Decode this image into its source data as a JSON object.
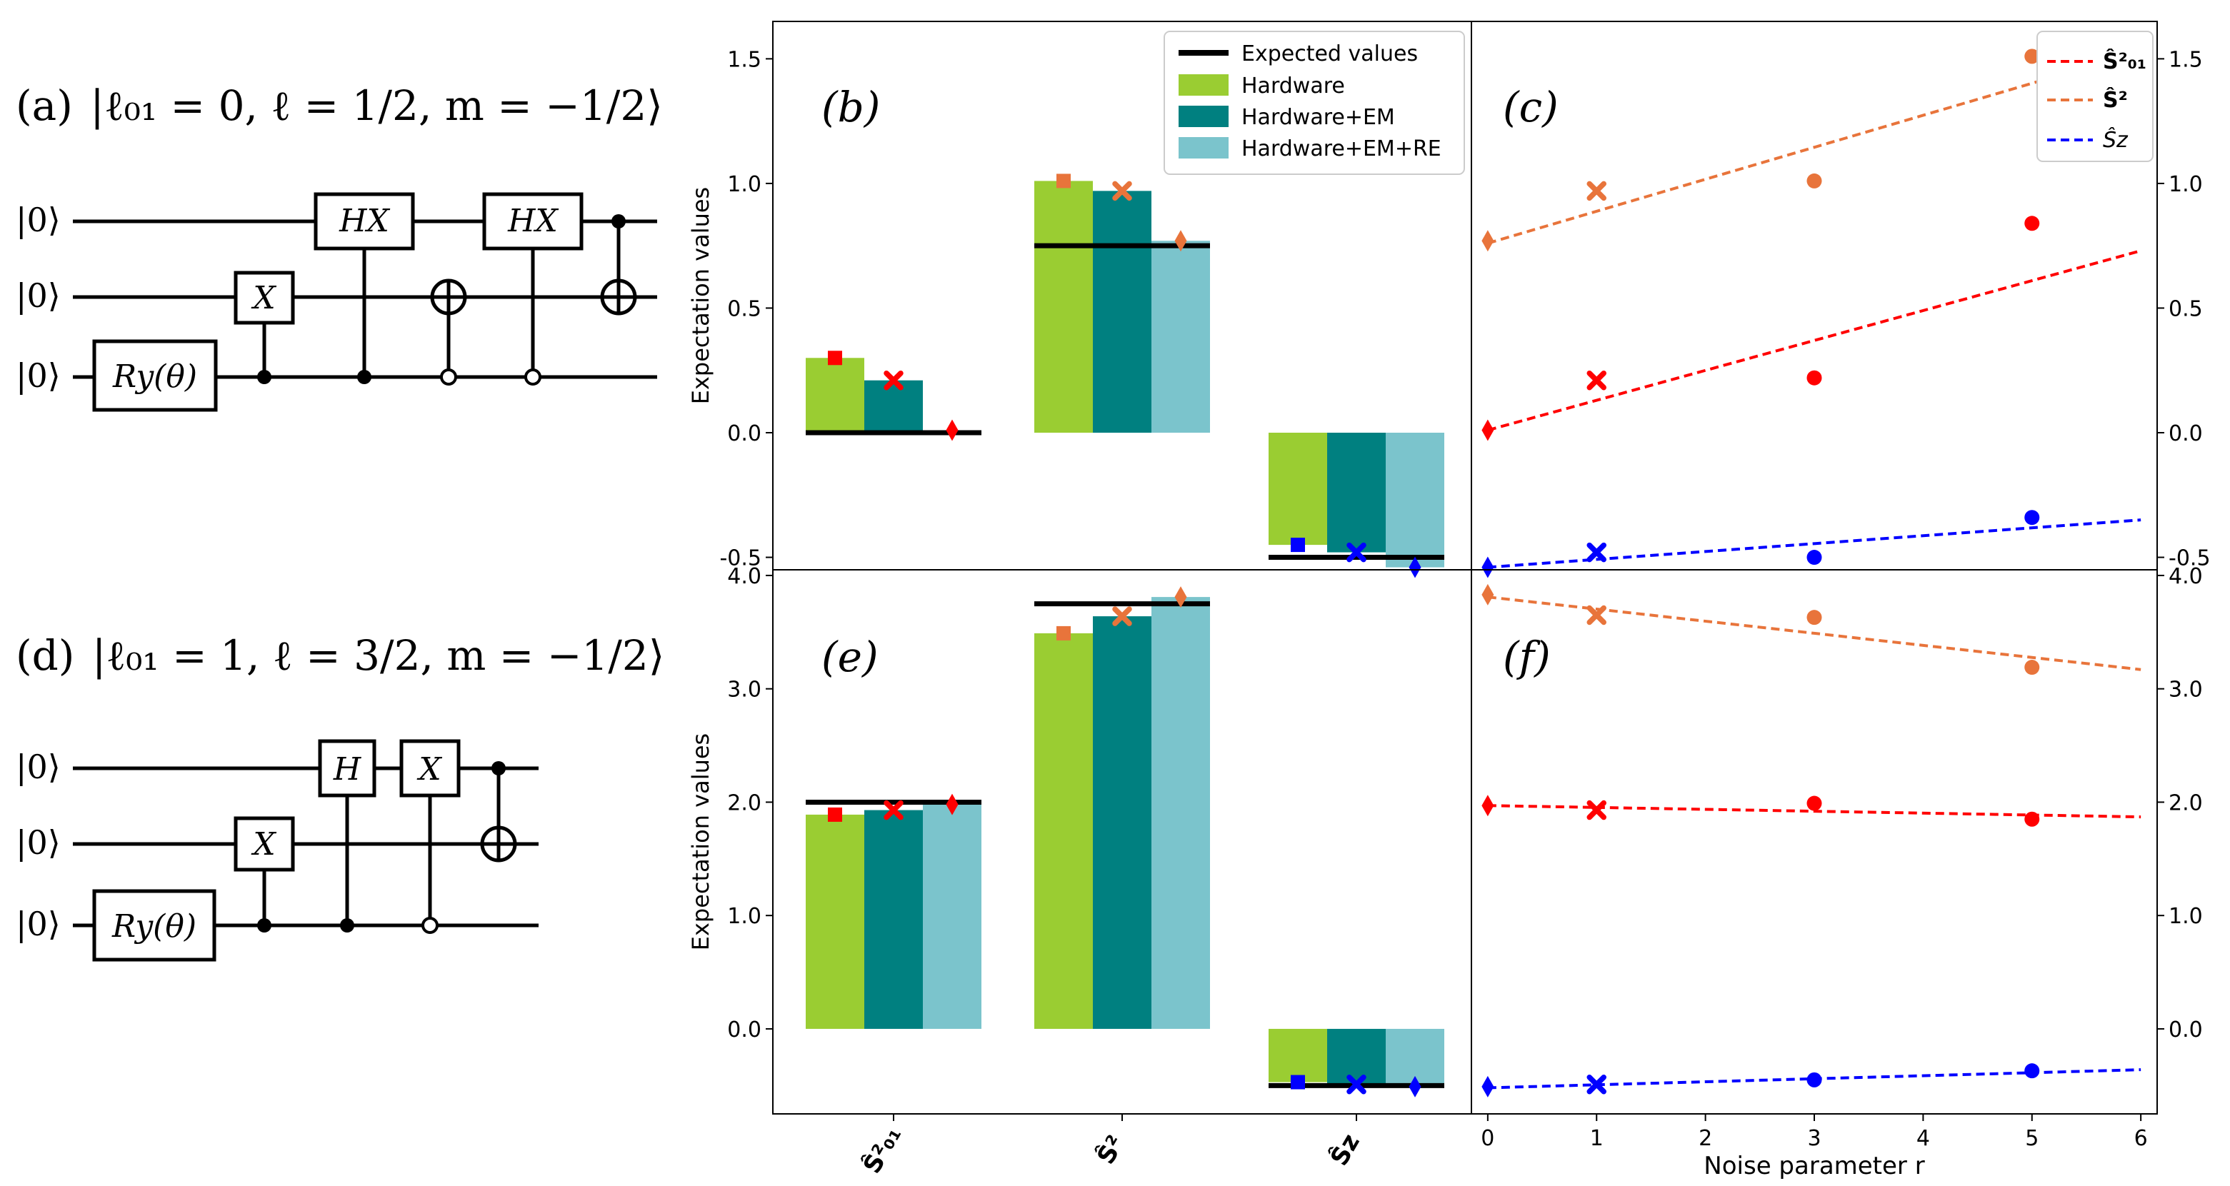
{
  "colors": {
    "hardware": "#9acd32",
    "hardware_em": "#008080",
    "hardware_em_re": "#7bc4cc",
    "expected": "#000000",
    "s01": "#ff0000",
    "s2": "#e8743b",
    "sz": "#0000ff"
  },
  "circuits": [
    {
      "label": "(a)",
      "title": "|ℓ₀₁ = 0, ℓ = 1/2, m = −1/2⟩",
      "kets": [
        "|0⟩",
        "|0⟩",
        "|0⟩"
      ],
      "ry_label": "Ry(θ)",
      "gates": [
        "X",
        "HX",
        "HX"
      ]
    },
    {
      "label": "(d)",
      "title": "|ℓ₀₁ = 1, ℓ = 3/2, m = −1/2⟩",
      "kets": [
        "|0⟩",
        "|0⟩",
        "|0⟩"
      ],
      "ry_label": "Ry(θ)",
      "gates": [
        "X",
        "H",
        "X"
      ]
    }
  ],
  "chart_data": [
    {
      "panel": "(b)",
      "type": "bar",
      "ylabel": "Expectation values",
      "ylim": [
        -0.55,
        1.65
      ],
      "yticks": [
        "-0.5",
        "0.0",
        "0.5",
        "1.0",
        "1.5"
      ],
      "categories": [
        "Ŝ²₀₁",
        "Ŝ²",
        "Ŝz"
      ],
      "series": [
        {
          "name": "Hardware",
          "values": [
            0.3,
            1.01,
            -0.45
          ]
        },
        {
          "name": "Hardware+EM",
          "values": [
            0.21,
            0.97,
            -0.48
          ]
        },
        {
          "name": "Hardware+EM+RE",
          "values": [
            0.01,
            0.77,
            -0.54
          ]
        }
      ],
      "expected": [
        0.0,
        0.75,
        -0.5
      ],
      "markers": [
        {
          "category": "Ŝ²₀₁",
          "values": [
            0.3,
            0.21,
            0.01
          ]
        },
        {
          "category": "Ŝ²",
          "values": [
            1.01,
            0.97,
            0.77
          ]
        },
        {
          "category": "Ŝz",
          "values": [
            -0.45,
            -0.48,
            -0.54
          ]
        }
      ],
      "legend": {
        "placement": "top-right",
        "entries": [
          "Expected values",
          "Hardware",
          "Hardware+EM",
          "Hardware+EM+RE"
        ]
      }
    },
    {
      "panel": "(c)",
      "type": "scatter",
      "xlim": [
        -0.15,
        6.15
      ],
      "ylim": [
        -0.55,
        1.65
      ],
      "yticks": [
        "-0.5",
        "0.0",
        "0.5",
        "1.0",
        "1.5"
      ],
      "series": [
        {
          "name": "Ŝ²₀₁",
          "x": [
            0,
            1,
            3,
            5
          ],
          "y": [
            0.01,
            0.21,
            0.22,
            0.84
          ],
          "fit": [
            [
              0,
              0.01
            ],
            [
              6,
              0.73
            ]
          ]
        },
        {
          "name": "Ŝ²",
          "x": [
            0,
            1,
            3,
            5
          ],
          "y": [
            0.77,
            0.97,
            1.01,
            1.51
          ],
          "fit": [
            [
              0,
              0.76
            ],
            [
              6,
              1.53
            ]
          ]
        },
        {
          "name": "Ŝz",
          "x": [
            0,
            1,
            3,
            5
          ],
          "y": [
            -0.54,
            -0.48,
            -0.5,
            -0.34
          ],
          "fit": [
            [
              0,
              -0.54
            ],
            [
              6,
              -0.35
            ]
          ]
        }
      ],
      "legend": {
        "placement": "top-right",
        "entries": [
          "Ŝ²₀₁",
          "Ŝ²",
          "Ŝz"
        ]
      }
    },
    {
      "panel": "(e)",
      "type": "bar",
      "ylabel": "Expectation values",
      "ylim": [
        -0.75,
        4.05
      ],
      "yticks": [
        "0.0",
        "1.0",
        "2.0",
        "3.0",
        "4.0"
      ],
      "xticklabels": [
        "Ŝ²₀₁",
        "Ŝ²",
        "Ŝz"
      ],
      "categories": [
        "Ŝ²₀₁",
        "Ŝ²",
        "Ŝz"
      ],
      "series": [
        {
          "name": "Hardware",
          "values": [
            1.89,
            3.49,
            -0.47
          ]
        },
        {
          "name": "Hardware+EM",
          "values": [
            1.93,
            3.64,
            -0.49
          ]
        },
        {
          "name": "Hardware+EM+RE",
          "values": [
            1.98,
            3.81,
            -0.51
          ]
        }
      ],
      "expected": [
        2.0,
        3.75,
        -0.5
      ],
      "markers": [
        {
          "category": "Ŝ²₀₁",
          "values": [
            1.89,
            1.93,
            1.98
          ]
        },
        {
          "category": "Ŝ²",
          "values": [
            3.49,
            3.64,
            3.81
          ]
        },
        {
          "category": "Ŝz",
          "values": [
            -0.47,
            -0.49,
            -0.51
          ]
        }
      ]
    },
    {
      "panel": "(f)",
      "type": "scatter",
      "xlabel": "Noise parameter r",
      "xlim": [
        -0.15,
        6.15
      ],
      "xticks": [
        "0",
        "1",
        "2",
        "3",
        "4",
        "5",
        "6"
      ],
      "ylim": [
        -0.75,
        4.05
      ],
      "yticks": [
        "0.0",
        "1.0",
        "2.0",
        "3.0",
        "4.0"
      ],
      "series": [
        {
          "name": "Ŝ²₀₁",
          "x": [
            0,
            1,
            3,
            5
          ],
          "y": [
            1.97,
            1.93,
            1.99,
            1.85
          ],
          "fit": [
            [
              0,
              1.97
            ],
            [
              6,
              1.87
            ]
          ]
        },
        {
          "name": "Ŝ²",
          "x": [
            0,
            1,
            3,
            5
          ],
          "y": [
            3.83,
            3.65,
            3.63,
            3.19
          ],
          "fit": [
            [
              0,
              3.81
            ],
            [
              6,
              3.17
            ]
          ]
        },
        {
          "name": "Ŝz",
          "x": [
            0,
            1,
            3,
            5
          ],
          "y": [
            -0.51,
            -0.49,
            -0.45,
            -0.37
          ],
          "fit": [
            [
              0,
              -0.52
            ],
            [
              6,
              -0.36
            ]
          ]
        }
      ]
    }
  ]
}
